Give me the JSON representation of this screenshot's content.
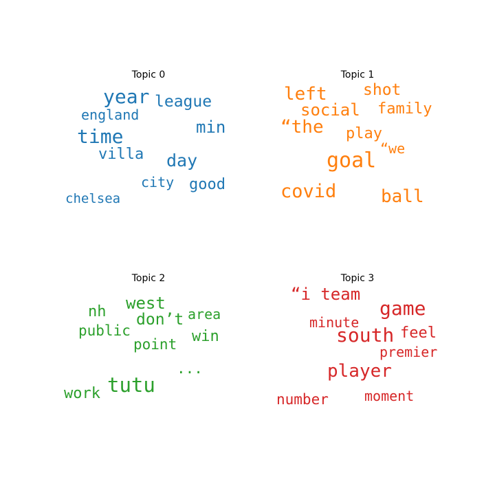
{
  "chart_data": [
    {
      "type": "wordcloud",
      "title": "Topic 0",
      "color": "#1f77b4",
      "words": [
        "year",
        "league",
        "england",
        "min",
        "time",
        "villa",
        "day",
        "city",
        "good",
        "chelsea"
      ]
    },
    {
      "type": "wordcloud",
      "title": "Topic 1",
      "color": "#ff7f0e",
      "words": [
        "left",
        "shot",
        "social",
        "family",
        "“the",
        "play",
        "“we",
        "goal",
        "covid",
        "ball"
      ]
    },
    {
      "type": "wordcloud",
      "title": "Topic 2",
      "color": "#2ca02c",
      "words": [
        "west",
        "nh",
        "don’t",
        "area",
        "public",
        "win",
        "point",
        "...",
        "tutu",
        "work"
      ]
    },
    {
      "type": "wordcloud",
      "title": "Topic 3",
      "color": "#d62728",
      "words": [
        "“i team",
        "game",
        "minute",
        "south",
        "feel",
        "premier",
        "player",
        "number",
        "moment"
      ]
    }
  ]
}
